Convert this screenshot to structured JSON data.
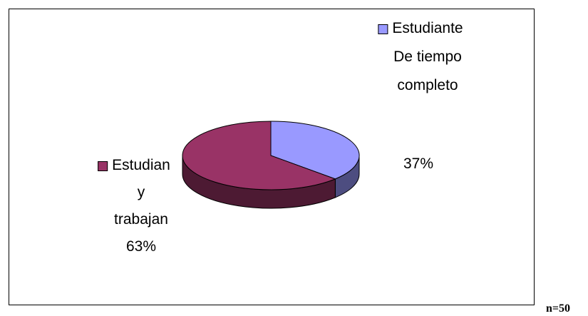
{
  "chart_data": {
    "type": "pie",
    "categories": [
      "Estudiante De tiempo completo",
      "Estudian y trabajan"
    ],
    "values": [
      37,
      63
    ],
    "value_labels": [
      "37%",
      "63%"
    ],
    "colors": [
      "#9999ff",
      "#993366"
    ],
    "side_colors": [
      "#4d4d80",
      "#4d1a33"
    ],
    "annotation": "n=50"
  }
}
